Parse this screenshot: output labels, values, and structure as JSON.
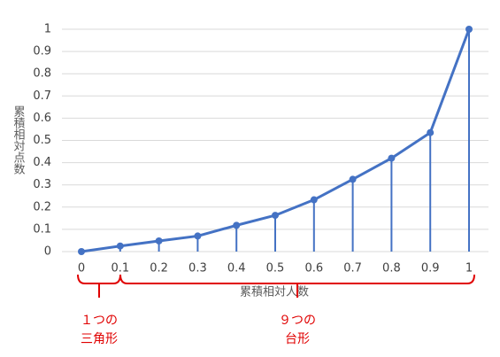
{
  "chart_data": {
    "type": "line",
    "x": [
      0,
      0.1,
      0.2,
      0.3,
      0.4,
      0.5,
      0.6,
      0.7,
      0.8,
      0.9,
      1
    ],
    "series": [
      {
        "color": "#4472c4",
        "values": [
          0,
          0.025,
          0.048,
          0.07,
          0.118,
          0.163,
          0.233,
          0.325,
          0.42,
          0.535,
          1
        ]
      }
    ],
    "xlim": [
      0,
      1
    ],
    "xticks": [
      0,
      0.1,
      0.2,
      0.3,
      0.4,
      0.5,
      0.6,
      0.7,
      0.8,
      0.9,
      1
    ],
    "ylim": [
      0,
      1
    ],
    "yticks": [
      0,
      0.1,
      0.2,
      0.3,
      0.4,
      0.5,
      0.6,
      0.7,
      0.8,
      0.9,
      1
    ],
    "grid": true,
    "drop_lines": true,
    "x_label": "累積相対人数",
    "y_label": "累積相対点数",
    "annotations": [
      [
        "１つの",
        "三角形"
      ],
      [
        "９つの",
        "台形"
      ]
    ]
  }
}
